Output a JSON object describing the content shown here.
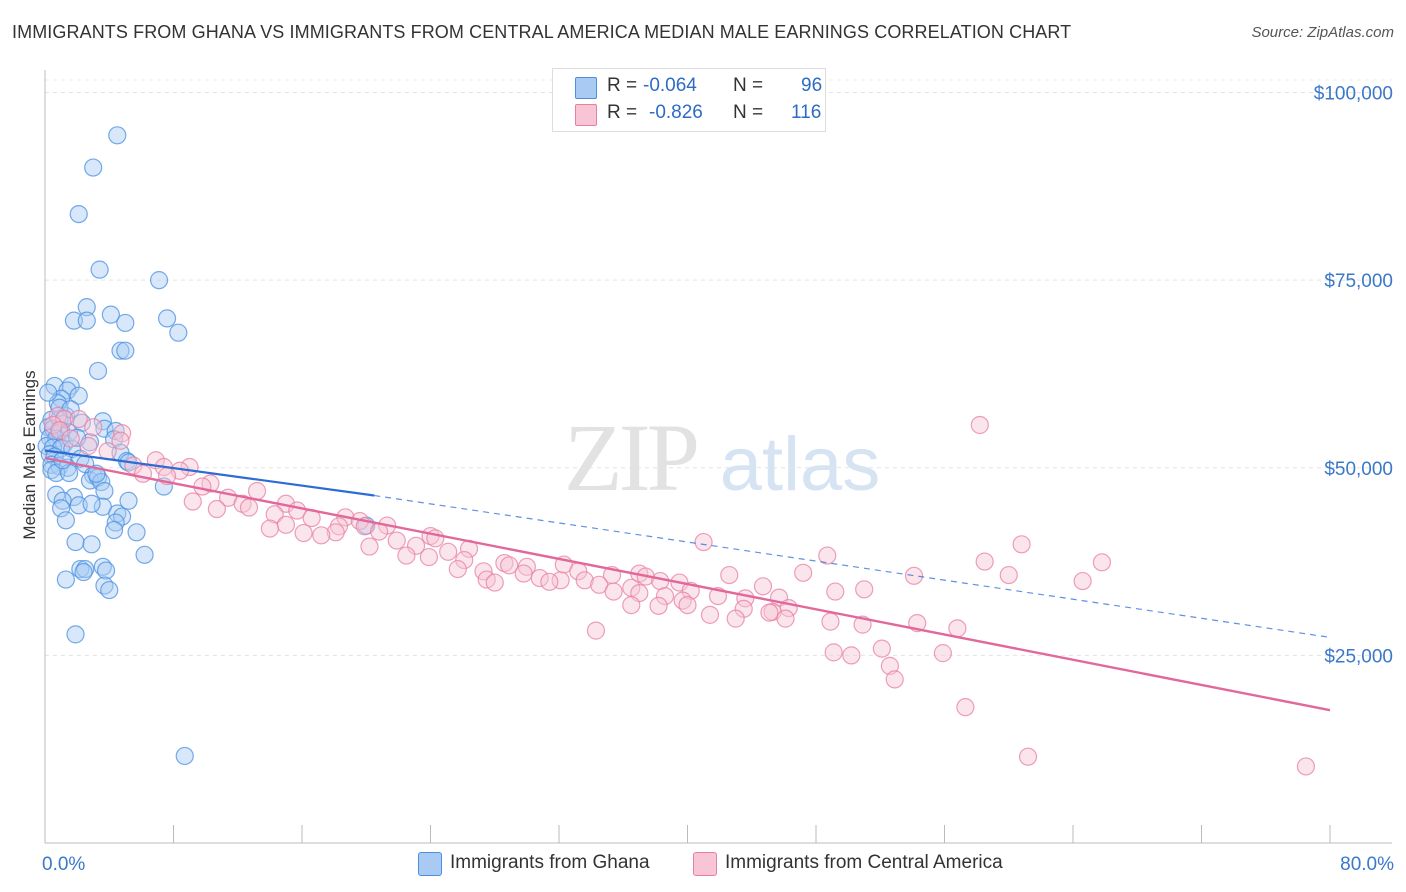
{
  "header": {
    "title": "IMMIGRANTS FROM GHANA VS IMMIGRANTS FROM CENTRAL AMERICA MEDIAN MALE EARNINGS CORRELATION CHART",
    "source": "Source: ZipAtlas.com"
  },
  "watermark": {
    "zip": "ZIP",
    "atlas": "atlas"
  },
  "legend": {
    "r_label": "R =",
    "n_label": "N =",
    "ghana": {
      "r": "-0.064",
      "n": "96"
    },
    "central_america": {
      "r": "-0.826",
      "n": "116"
    }
  },
  "bottom_legend": {
    "ghana": "Immigrants from Ghana",
    "central_america": "Immigrants from Central America"
  },
  "colors": {
    "ghana": "#4a8fe0",
    "ghana_fill": "#a9cbf3",
    "ghana_line": "#2c6cd4",
    "central_america": "#e87fa1",
    "central_america_fill": "#f7c5d5",
    "central_america_line": "#e2689a",
    "axis_text": "#3a78c8"
  },
  "chart_data": {
    "type": "scatter",
    "title": "IMMIGRANTS FROM GHANA VS IMMIGRANTS FROM CENTRAL AMERICA MEDIAN MALE EARNINGS CORRELATION CHART",
    "xlabel": "",
    "ylabel": "Median Male Earnings",
    "xlim": [
      0,
      80
    ],
    "ylim": [
      0,
      103000
    ],
    "x_tick_labels": [
      "0.0%",
      "80.0%"
    ],
    "y_ticks": [
      25000,
      50000,
      75000,
      100000
    ],
    "y_tick_labels": [
      "$25,000",
      "$50,000",
      "$75,000",
      "$100,000"
    ],
    "grid": true,
    "series": [
      {
        "name": "Immigrants from Ghana",
        "r": -0.064,
        "n": 96,
        "trend": {
          "x0": 0,
          "y0": 52300,
          "x1": 20.5,
          "y1": 46300,
          "x_dash_end": 80,
          "y_dash_end": 27400
        },
        "points": [
          [
            4.5,
            94300
          ],
          [
            3.0,
            90000
          ],
          [
            2.1,
            83800
          ],
          [
            3.4,
            76400
          ],
          [
            7.1,
            75000
          ],
          [
            2.6,
            71400
          ],
          [
            4.1,
            70400
          ],
          [
            1.8,
            69600
          ],
          [
            2.6,
            69600
          ],
          [
            5.0,
            69300
          ],
          [
            7.6,
            69900
          ],
          [
            8.3,
            68000
          ],
          [
            4.7,
            65600
          ],
          [
            5.0,
            65600
          ],
          [
            3.3,
            62900
          ],
          [
            0.6,
            60900
          ],
          [
            1.6,
            60900
          ],
          [
            1.4,
            60300
          ],
          [
            2.1,
            59600
          ],
          [
            1.0,
            59200
          ],
          [
            0.8,
            58600
          ],
          [
            1.3,
            56900
          ],
          [
            0.4,
            56400
          ],
          [
            0.9,
            56500
          ],
          [
            1.2,
            56500
          ],
          [
            3.6,
            56200
          ],
          [
            0.2,
            55400
          ],
          [
            0.5,
            55200
          ],
          [
            1.0,
            55000
          ],
          [
            0.9,
            54700
          ],
          [
            1.5,
            54700
          ],
          [
            3.7,
            55200
          ],
          [
            4.4,
            54900
          ],
          [
            0.3,
            54000
          ],
          [
            0.7,
            53900
          ],
          [
            1.2,
            53200
          ],
          [
            2.8,
            53400
          ],
          [
            4.3,
            53800
          ],
          [
            0.1,
            52900
          ],
          [
            0.5,
            52700
          ],
          [
            1.0,
            52600
          ],
          [
            1.7,
            52500
          ],
          [
            4.7,
            52000
          ],
          [
            0.3,
            51800
          ],
          [
            0.6,
            51500
          ],
          [
            2.2,
            51200
          ],
          [
            5.1,
            50900
          ],
          [
            0.4,
            50400
          ],
          [
            0.9,
            50200
          ],
          [
            1.4,
            50000
          ],
          [
            2.5,
            50500
          ],
          [
            5.2,
            50700
          ],
          [
            0.4,
            49700
          ],
          [
            0.7,
            49300
          ],
          [
            1.5,
            49300
          ],
          [
            3.0,
            49000
          ],
          [
            2.8,
            48300
          ],
          [
            3.3,
            48700
          ],
          [
            3.5,
            48100
          ],
          [
            7.4,
            47500
          ],
          [
            0.7,
            46400
          ],
          [
            1.8,
            46100
          ],
          [
            3.7,
            46900
          ],
          [
            1.1,
            45600
          ],
          [
            2.1,
            45000
          ],
          [
            3.6,
            44800
          ],
          [
            2.9,
            45200
          ],
          [
            5.2,
            45600
          ],
          [
            1.0,
            44600
          ],
          [
            4.5,
            43900
          ],
          [
            4.8,
            43500
          ],
          [
            1.3,
            43000
          ],
          [
            4.4,
            42700
          ],
          [
            4.3,
            41700
          ],
          [
            5.7,
            41400
          ],
          [
            1.9,
            40100
          ],
          [
            2.9,
            39800
          ],
          [
            6.2,
            38400
          ],
          [
            2.2,
            36500
          ],
          [
            2.5,
            36500
          ],
          [
            2.4,
            36100
          ],
          [
            3.6,
            36800
          ],
          [
            3.8,
            36300
          ],
          [
            1.3,
            35100
          ],
          [
            3.7,
            34300
          ],
          [
            4.0,
            33700
          ],
          [
            1.9,
            27800
          ],
          [
            20.0,
            42300
          ],
          [
            8.7,
            11600
          ],
          [
            0.2,
            60000
          ],
          [
            0.9,
            58000
          ],
          [
            1.6,
            57800
          ],
          [
            2.3,
            56000
          ],
          [
            2.0,
            54000
          ],
          [
            1.1,
            51000
          ],
          [
            3.2,
            49200
          ]
        ]
      },
      {
        "name": "Immigrants from Central America",
        "r": -0.826,
        "n": 116,
        "trend": {
          "x0": 0,
          "y0": 51300,
          "x1": 80,
          "y1": 17700
        },
        "points": [
          [
            0.8,
            56900
          ],
          [
            1.2,
            56500
          ],
          [
            2.1,
            56500
          ],
          [
            0.5,
            55700
          ],
          [
            3.0,
            55400
          ],
          [
            0.9,
            55000
          ],
          [
            4.8,
            54600
          ],
          [
            1.6,
            53900
          ],
          [
            4.7,
            53600
          ],
          [
            2.7,
            52900
          ],
          [
            3.9,
            52200
          ],
          [
            6.9,
            51000
          ],
          [
            5.5,
            50300
          ],
          [
            7.4,
            50100
          ],
          [
            9.0,
            50100
          ],
          [
            8.4,
            49600
          ],
          [
            6.1,
            49200
          ],
          [
            7.6,
            48900
          ],
          [
            10.3,
            47900
          ],
          [
            9.8,
            47500
          ],
          [
            13.2,
            46900
          ],
          [
            11.4,
            46000
          ],
          [
            9.2,
            45500
          ],
          [
            12.3,
            45200
          ],
          [
            15.0,
            45200
          ],
          [
            12.7,
            44700
          ],
          [
            15.7,
            44300
          ],
          [
            10.7,
            44500
          ],
          [
            14.3,
            43800
          ],
          [
            16.6,
            43300
          ],
          [
            18.7,
            43400
          ],
          [
            19.6,
            42900
          ],
          [
            15.0,
            42400
          ],
          [
            18.3,
            42200
          ],
          [
            19.9,
            42200
          ],
          [
            21.3,
            42300
          ],
          [
            14.0,
            41900
          ],
          [
            18.1,
            41400
          ],
          [
            16.1,
            41300
          ],
          [
            20.8,
            41500
          ],
          [
            17.2,
            41000
          ],
          [
            24.0,
            40900
          ],
          [
            24.3,
            40600
          ],
          [
            21.9,
            40300
          ],
          [
            23.1,
            39600
          ],
          [
            20.2,
            39500
          ],
          [
            26.4,
            39200
          ],
          [
            25.1,
            38800
          ],
          [
            22.5,
            38300
          ],
          [
            23.9,
            38100
          ],
          [
            26.1,
            37700
          ],
          [
            28.6,
            37300
          ],
          [
            32.3,
            37100
          ],
          [
            28.9,
            37000
          ],
          [
            41.0,
            40100
          ],
          [
            48.7,
            38300
          ],
          [
            30.0,
            36800
          ],
          [
            25.7,
            36500
          ],
          [
            27.3,
            36200
          ],
          [
            29.8,
            35900
          ],
          [
            33.2,
            36200
          ],
          [
            37.0,
            35900
          ],
          [
            37.4,
            35500
          ],
          [
            35.3,
            35700
          ],
          [
            42.6,
            35700
          ],
          [
            27.5,
            35100
          ],
          [
            30.8,
            35300
          ],
          [
            32.1,
            35000
          ],
          [
            33.6,
            35000
          ],
          [
            31.4,
            34800
          ],
          [
            38.3,
            34900
          ],
          [
            39.5,
            34700
          ],
          [
            47.2,
            36000
          ],
          [
            54.1,
            35600
          ],
          [
            28.0,
            34700
          ],
          [
            34.5,
            34400
          ],
          [
            36.5,
            34000
          ],
          [
            44.7,
            34200
          ],
          [
            35.4,
            33500
          ],
          [
            40.2,
            33600
          ],
          [
            51.0,
            33800
          ],
          [
            37.0,
            33300
          ],
          [
            38.6,
            32900
          ],
          [
            41.9,
            32900
          ],
          [
            45.7,
            32700
          ],
          [
            43.6,
            32600
          ],
          [
            49.2,
            33500
          ],
          [
            39.7,
            32300
          ],
          [
            40.0,
            31700
          ],
          [
            38.2,
            31600
          ],
          [
            43.5,
            31200
          ],
          [
            46.3,
            31300
          ],
          [
            45.3,
            30800
          ],
          [
            45.1,
            30700
          ],
          [
            46.1,
            29900
          ],
          [
            43.0,
            29900
          ],
          [
            50.9,
            29100
          ],
          [
            54.3,
            29300
          ],
          [
            56.8,
            28600
          ],
          [
            34.3,
            28300
          ],
          [
            36.5,
            31700
          ],
          [
            41.4,
            30400
          ],
          [
            48.9,
            29500
          ],
          [
            52.1,
            25900
          ],
          [
            49.1,
            25400
          ],
          [
            50.2,
            25000
          ],
          [
            52.6,
            23600
          ],
          [
            52.9,
            21800
          ],
          [
            57.3,
            18100
          ],
          [
            61.2,
            11500
          ],
          [
            78.5,
            10200
          ],
          [
            58.2,
            55700
          ],
          [
            58.5,
            37500
          ],
          [
            60.0,
            35700
          ],
          [
            60.8,
            39800
          ],
          [
            64.6,
            34900
          ],
          [
            65.8,
            37400
          ],
          [
            55.9,
            25300
          ]
        ]
      }
    ]
  }
}
